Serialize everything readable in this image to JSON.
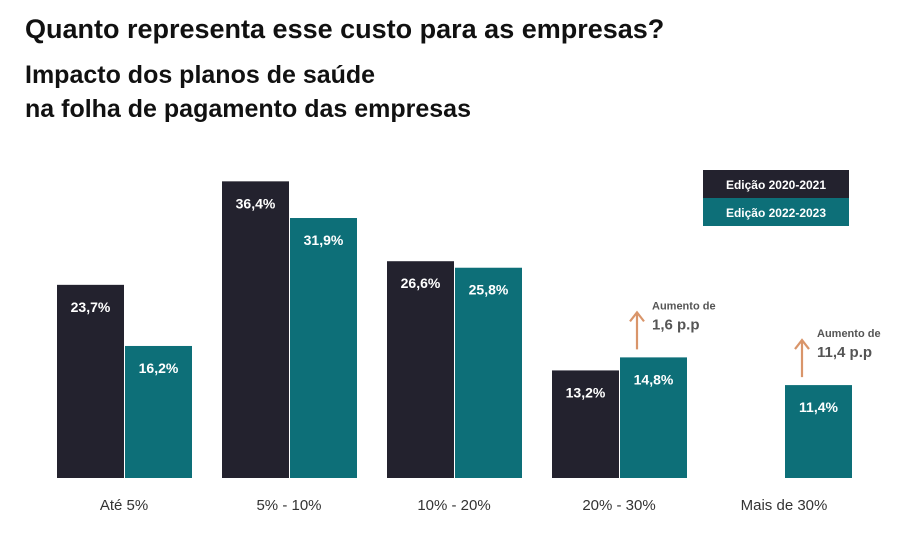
{
  "chart_data": {
    "type": "bar",
    "title": "Quanto representa esse custo para as empresas?",
    "subtitle_lines": [
      "Impacto dos planos de saúde",
      "na folha de pagamento das empresas"
    ],
    "categories": [
      "Até 5%",
      "5% - 10%",
      "10% - 20%",
      "20% - 30%",
      "Mais de 30%"
    ],
    "series": [
      {
        "name": "Edição 2020-2021",
        "color": "#23222e",
        "values": [
          23.7,
          36.4,
          26.6,
          13.2,
          null
        ],
        "labels": [
          "23,7%",
          "36,4%",
          "26,6%",
          "13,2%",
          ""
        ]
      },
      {
        "name": "Edição 2022-2023",
        "color": "#0d6f78",
        "values": [
          16.2,
          31.9,
          25.8,
          14.8,
          11.4
        ],
        "labels": [
          "16,2%",
          "31,9%",
          "25,8%",
          "14,8%",
          "11,4%"
        ]
      }
    ],
    "annotations": [
      {
        "category": "20% - 30%",
        "line1": "Aumento de",
        "line2": "1,6 p.p",
        "arrow_color": "#d9956a"
      },
      {
        "category": "Mais de 30%",
        "line1": "Aumento de",
        "line2": "11,4 p.p",
        "arrow_color": "#d9956a"
      }
    ],
    "legend_position": "top-right",
    "grid": false,
    "ylim": [
      0,
      40
    ]
  }
}
